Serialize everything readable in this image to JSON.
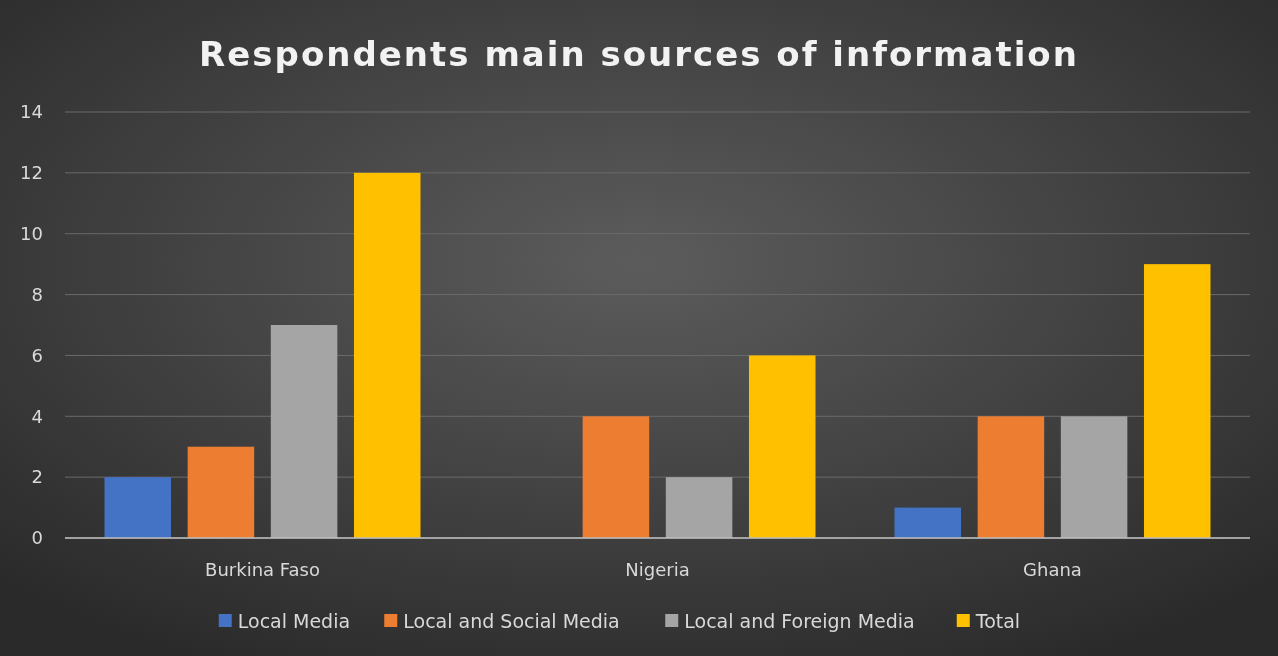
{
  "chart_data": {
    "type": "bar",
    "title": "Respondents main sources of information",
    "categories": [
      "Burkina Faso",
      "Nigeria",
      "Ghana"
    ],
    "series": [
      {
        "name": "Local Media",
        "color": "#4472c4",
        "values": [
          2,
          0,
          1
        ]
      },
      {
        "name": "Local and Social Media",
        "color": "#ed7d31",
        "values": [
          3,
          4,
          4
        ]
      },
      {
        "name": "Local and Foreign Media",
        "color": "#a5a5a5",
        "values": [
          7,
          2,
          4
        ]
      },
      {
        "name": "Total",
        "color": "#ffc000",
        "values": [
          12,
          6,
          9
        ]
      }
    ],
    "ylim": [
      0,
      14
    ],
    "yticks": [
      0,
      2,
      4,
      6,
      8,
      10,
      12,
      14
    ],
    "grid": "y",
    "legend": "bottom"
  }
}
